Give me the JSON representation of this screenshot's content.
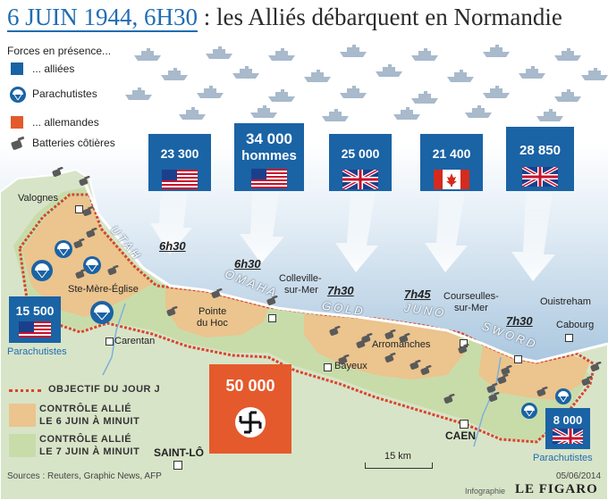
{
  "title": {
    "date_time": "6 JUIN 1944, 6H30",
    "sep": ":",
    "rest": "les Alliés débarquent en Normandie"
  },
  "legend": {
    "heading": "Forces en présence...",
    "allied": "... alliées",
    "paratroopers": "Parachutistes",
    "german": "... allemandes",
    "batteries": "Batteries côtières",
    "objective": "OBJECTIF DU JOUR J",
    "control_6_l1": "CONTRÔLE ALLIÉ",
    "control_6_l2": "LE 6 JUIN À MINUIT",
    "control_7_l1": "CONTRÔLE ALLIÉ",
    "control_7_l2": "LE 7 JUIN À MINUIT"
  },
  "forces": [
    {
      "value": "23 300",
      "flag": "usa"
    },
    {
      "value": "34 000",
      "value2": "hommes",
      "flag": "usa"
    },
    {
      "value": "25 000",
      "flag": "uk"
    },
    {
      "value": "21 400",
      "flag": "canada"
    },
    {
      "value": "28 850",
      "flag": "uk"
    }
  ],
  "paratroopers": [
    {
      "value": "15 500",
      "flag": "usa",
      "label": "Parachutistes"
    },
    {
      "value": "8 000",
      "flag": "uk",
      "label": "Parachutistes"
    }
  ],
  "german_force": {
    "value": "50 000",
    "symbol": "swastika"
  },
  "beaches": [
    "UTAH",
    "OMAHA",
    "GOLD",
    "JUNO",
    "SWORD"
  ],
  "times": [
    "6h30",
    "6h30",
    "7h30",
    "7h45",
    "7h30"
  ],
  "places": {
    "valognes": "Valognes",
    "ste_mere": "Ste-Mère-Église",
    "carentan": "Carentan",
    "pointe_l1": "Pointe",
    "pointe_l2": "du Hoc",
    "colleville_l1": "Colleville-",
    "colleville_l2": "sur-Mer",
    "bayeux": "Bayeux",
    "arromanches": "Arromanches",
    "courseulles_l1": "Courseulles-",
    "courseulles_l2": "sur-Mer",
    "ouistreham": "Ouistreham",
    "cabourg": "Cabourg",
    "caen": "CAEN",
    "saint_lo": "SAINT-LÔ"
  },
  "scale": "15 km",
  "footer": {
    "sources": "Sources : Reuters, Graphic News, AFP",
    "date": "05/06/2014",
    "infographie": "Infographie",
    "brand": "LE FIGARO"
  },
  "colors": {
    "allied": "#1a63a5",
    "german": "#e45a2c",
    "sea": "#a7c4dc",
    "land": "#d6e3c6",
    "control6": "#e7c08e",
    "control7": "#c6dba6",
    "objective": "#d9452b"
  }
}
